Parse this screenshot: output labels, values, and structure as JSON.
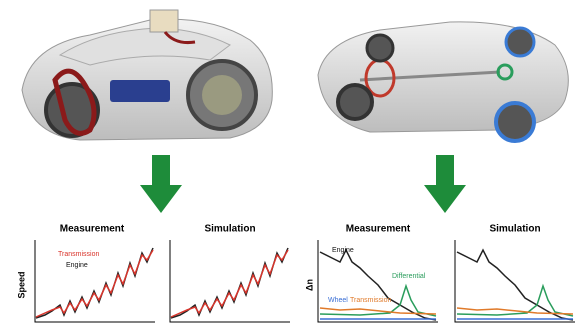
{
  "left_panel": {
    "measurement": {
      "title": "Measurement",
      "y_label": "Speed",
      "legend": [
        "Transmission",
        "Engine"
      ]
    },
    "simulation": {
      "title": "Simulation"
    }
  },
  "right_panel": {
    "measurement": {
      "title": "Measurement",
      "y_label": "Δn",
      "labels": [
        "Engine",
        "Differential",
        "Wheel",
        "Transmission"
      ]
    },
    "simulation": {
      "title": "Simulation"
    }
  }
}
